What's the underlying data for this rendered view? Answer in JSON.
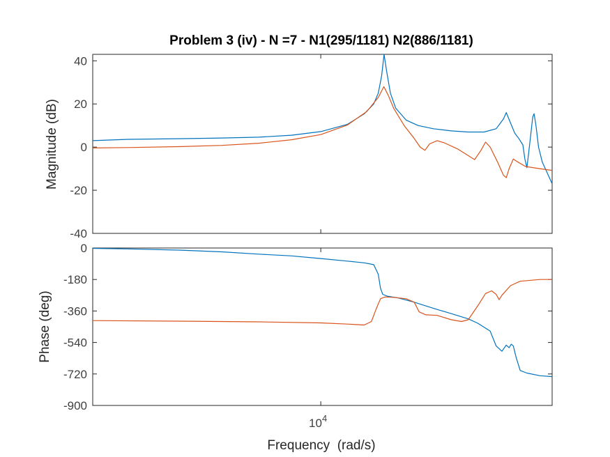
{
  "chart_data": [
    {
      "type": "line",
      "title": "Problem 3 (iv) - N =7 - N1(295/1181) N2(886/1181)",
      "xlabel": "",
      "ylabel": "Magnitude (dB)",
      "xscale": "log",
      "xlim": [
        4400,
        23000
      ],
      "ylim": [
        -40,
        43
      ],
      "yticks": [
        40,
        20,
        0,
        -20,
        -40
      ],
      "yticklabels": [
        "40",
        "20",
        "0",
        "-20",
        "-40"
      ],
      "series": [
        {
          "color": "#0072BD",
          "points": [
            [
              4400,
              3
            ],
            [
              5000,
              3.6
            ],
            [
              6000,
              3.9
            ],
            [
              7000,
              4.2
            ],
            [
              8000,
              4.6
            ],
            [
              9000,
              5.5
            ],
            [
              10000,
              7.2
            ],
            [
              11000,
              10.5
            ],
            [
              11700,
              15.5
            ],
            [
              12100,
              20
            ],
            [
              12300,
              25
            ],
            [
              12450,
              33
            ],
            [
              12560,
              43
            ],
            [
              12680,
              35
            ],
            [
              12850,
              25
            ],
            [
              13100,
              18
            ],
            [
              13600,
              12.5
            ],
            [
              14200,
              10
            ],
            [
              15000,
              8.5
            ],
            [
              16000,
              7.5
            ],
            [
              17000,
              7
            ],
            [
              18000,
              7
            ],
            [
              18800,
              8.5
            ],
            [
              19300,
              13
            ],
            [
              19500,
              16
            ],
            [
              19750,
              12
            ],
            [
              20100,
              6.5
            ],
            [
              20400,
              4
            ],
            [
              20700,
              1
            ],
            [
              20850,
              -5.5
            ],
            [
              21000,
              -9.5
            ],
            [
              21150,
              -2
            ],
            [
              21300,
              6
            ],
            [
              21450,
              14
            ],
            [
              21550,
              15.5
            ],
            [
              21700,
              10
            ],
            [
              21900,
              0
            ],
            [
              22200,
              -7
            ],
            [
              22600,
              -12
            ],
            [
              23000,
              -17
            ]
          ]
        },
        {
          "color": "#D95319",
          "points": [
            [
              4400,
              -0.4
            ],
            [
              5000,
              -0.2
            ],
            [
              6000,
              0.2
            ],
            [
              7000,
              0.8
            ],
            [
              8000,
              1.8
            ],
            [
              9000,
              3.4
            ],
            [
              10000,
              5.8
            ],
            [
              11000,
              10.2
            ],
            [
              11800,
              16.5
            ],
            [
              12300,
              23
            ],
            [
              12550,
              28
            ],
            [
              12750,
              24
            ],
            [
              13000,
              18
            ],
            [
              13500,
              10
            ],
            [
              14000,
              4
            ],
            [
              14300,
              0
            ],
            [
              14550,
              -1.5
            ],
            [
              14800,
              1.5
            ],
            [
              15200,
              3
            ],
            [
              15600,
              2
            ],
            [
              16400,
              -1
            ],
            [
              17400,
              -5.8
            ],
            [
              17800,
              -1.5
            ],
            [
              18100,
              2.3
            ],
            [
              18400,
              0
            ],
            [
              18900,
              -7
            ],
            [
              19300,
              -13
            ],
            [
              19500,
              -14.2
            ],
            [
              19700,
              -10
            ],
            [
              20000,
              -5.5
            ],
            [
              20300,
              -6.8
            ],
            [
              20900,
              -9
            ],
            [
              22000,
              -10
            ],
            [
              23000,
              -10.8
            ]
          ]
        }
      ]
    },
    {
      "type": "line",
      "xlabel": "Frequency  (rad/s)",
      "ylabel": "Phase (deg)",
      "xscale": "log",
      "xlim": [
        4400,
        23000
      ],
      "xticks": [
        10000
      ],
      "ylim": [
        -900,
        0
      ],
      "yticks": [
        0,
        -180,
        -360,
        -540,
        -720,
        -900
      ],
      "yticklabels": [
        "0",
        "-180",
        "-360",
        "-540",
        "-720",
        "-900"
      ],
      "series": [
        {
          "color": "#0072BD",
          "points": [
            [
              4400,
              -2
            ],
            [
              5000,
              -5
            ],
            [
              6000,
              -12
            ],
            [
              7000,
              -22
            ],
            [
              8000,
              -35
            ],
            [
              9000,
              -45
            ],
            [
              10000,
              -60
            ],
            [
              11000,
              -75
            ],
            [
              11700,
              -85
            ],
            [
              12100,
              -95
            ],
            [
              12300,
              -150
            ],
            [
              12400,
              -230
            ],
            [
              12500,
              -265
            ],
            [
              12700,
              -275
            ],
            [
              13200,
              -285
            ],
            [
              14000,
              -310
            ],
            [
              15000,
              -345
            ],
            [
              16000,
              -375
            ],
            [
              17000,
              -405
            ],
            [
              17600,
              -430
            ],
            [
              18400,
              -475
            ],
            [
              18800,
              -560
            ],
            [
              19200,
              -590
            ],
            [
              19500,
              -555
            ],
            [
              19700,
              -570
            ],
            [
              19850,
              -550
            ],
            [
              20000,
              -560
            ],
            [
              20200,
              -625
            ],
            [
              20500,
              -700
            ],
            [
              21000,
              -715
            ],
            [
              22000,
              -730
            ],
            [
              23000,
              -735
            ]
          ]
        },
        {
          "color": "#D95319",
          "points": [
            [
              4400,
              -415
            ],
            [
              6000,
              -418
            ],
            [
              8000,
              -422
            ],
            [
              10000,
              -428
            ],
            [
              11000,
              -435
            ],
            [
              11700,
              -440
            ],
            [
              12000,
              -420
            ],
            [
              12200,
              -350
            ],
            [
              12400,
              -290
            ],
            [
              12600,
              -280
            ],
            [
              13000,
              -282
            ],
            [
              13600,
              -290
            ],
            [
              14000,
              -310
            ],
            [
              14250,
              -365
            ],
            [
              14600,
              -382
            ],
            [
              15200,
              -385
            ],
            [
              16000,
              -410
            ],
            [
              16600,
              -420
            ],
            [
              17000,
              -410
            ],
            [
              17600,
              -330
            ],
            [
              18100,
              -260
            ],
            [
              18500,
              -245
            ],
            [
              18800,
              -265
            ],
            [
              19000,
              -295
            ],
            [
              19200,
              -270
            ],
            [
              19800,
              -215
            ],
            [
              20500,
              -190
            ],
            [
              22000,
              -180
            ],
            [
              23000,
              -180
            ]
          ]
        }
      ]
    }
  ]
}
